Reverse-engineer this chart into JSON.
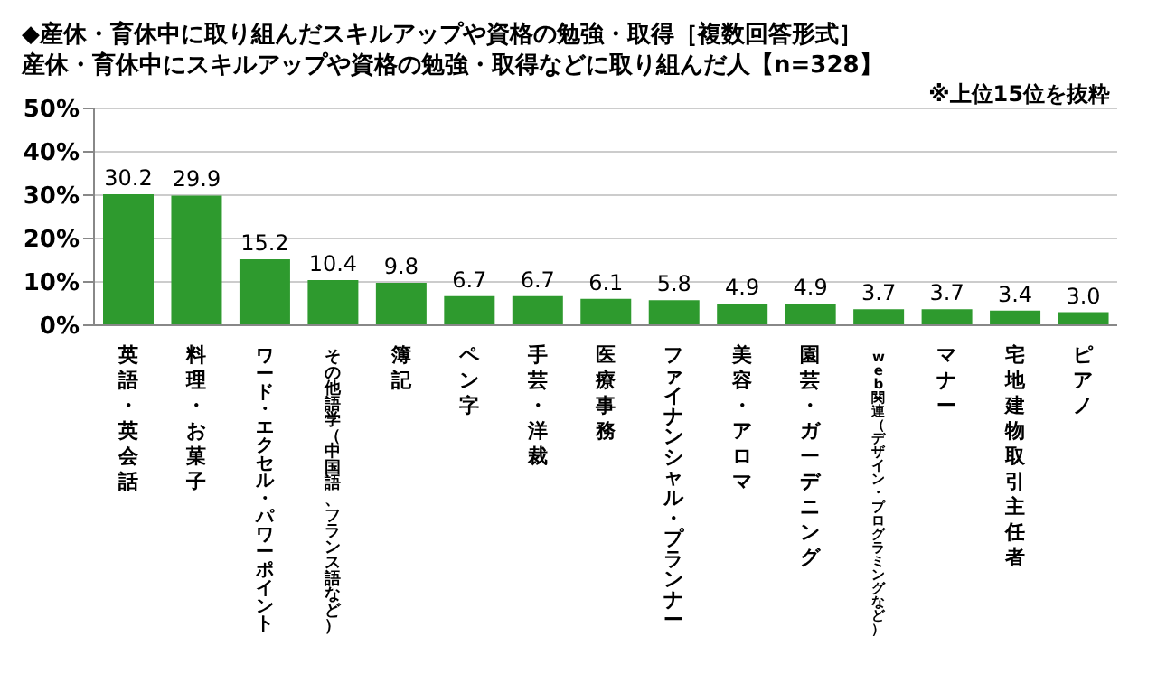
{
  "chart_data": {
    "type": "bar",
    "title": "◆産休・育休中に取り組んだスキルアップや資格の勉強・取得［複数回答形式］",
    "subtitle": "産休・育休中にスキルアップや資格の勉強・取得などに取り組んだ人【n=328】",
    "annotations": [
      "※上位15位を抜粋"
    ],
    "categories": [
      "英語・英会話",
      "料理・お菓子",
      "ワード・エクセル・パワーポイント",
      "その他語学（中国語、フランス語など）",
      "簿記",
      "ペン字",
      "手芸・洋裁",
      "医療事務",
      "ファイナンシャル・プランナー",
      "美容・アロマ",
      "園芸・ガーデニング",
      "web関連（デザイン・プログラミングなど）",
      "マナー",
      "宅地建物取引主任者",
      "ピアノ"
    ],
    "values": [
      30.2,
      29.9,
      15.2,
      10.4,
      9.8,
      6.7,
      6.7,
      6.1,
      5.8,
      4.9,
      4.9,
      3.7,
      3.7,
      3.4,
      3.0
    ],
    "value_labels": [
      "30.2",
      "29.9",
      "15.2",
      "10.4",
      "9.8",
      "6.7",
      "6.7",
      "6.1",
      "5.8",
      "4.9",
      "4.9",
      "3.7",
      "3.7",
      "3.4",
      "3.0"
    ],
    "color": "#2e9a2e",
    "ylim": [
      0,
      50
    ],
    "yticks": [
      {
        "value": 0,
        "label": "0%"
      },
      {
        "value": 10,
        "label": "10%"
      },
      {
        "value": 20,
        "label": "20%"
      },
      {
        "value": 30,
        "label": "30%"
      },
      {
        "value": 40,
        "label": "40%"
      },
      {
        "value": 50,
        "label": "50%"
      }
    ],
    "grid": "y",
    "legend": false
  }
}
